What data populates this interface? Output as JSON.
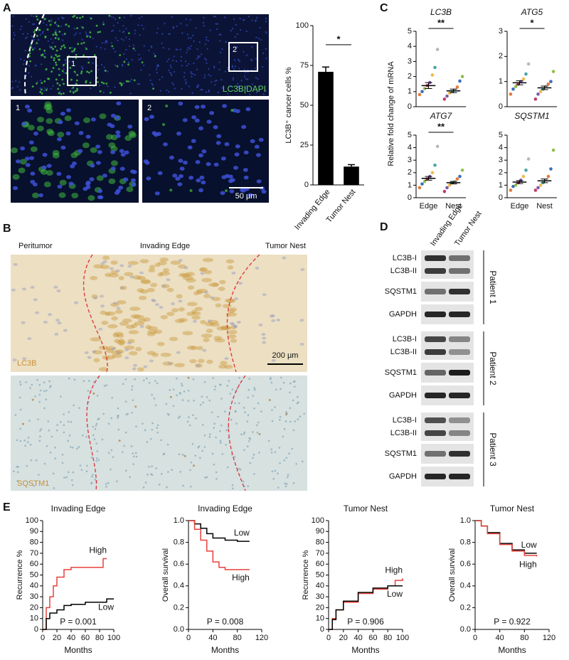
{
  "panels": [
    "A",
    "B",
    "C",
    "D",
    "E"
  ],
  "figure_a": {
    "stain_label": "LC3B|DAPI",
    "inset_labels": [
      "1",
      "2"
    ],
    "scale_bar": "50 µm"
  },
  "figure_b": {
    "region_labels": [
      "Peritumor",
      "Invading Edge",
      "Tumor Nest"
    ],
    "stain_labels": [
      "LC3B",
      "SQSTM1"
    ],
    "scale_bar": "200 µm"
  },
  "figure_c": {
    "ylabel": "Relative fold change of mRNA"
  },
  "figure_d": {
    "lanes": [
      "Invading Edge",
      "Tumor Nest"
    ],
    "patients": [
      {
        "name": "Patient 1",
        "rows": [
          "LC3B-I",
          "LC3B-II",
          "SQSTM1",
          "GAPDH"
        ]
      },
      {
        "name": "Patient 2",
        "rows": [
          "LC3B-I",
          "LC3B-II",
          "SQSTM1",
          "GAPDH"
        ]
      },
      {
        "name": "Patient 3",
        "rows": [
          "LC3B-I",
          "LC3B-II",
          "SQSTM1",
          "GAPDH"
        ]
      }
    ]
  },
  "chart_data": [
    {
      "type": "bar",
      "ylabel": "LC3B⁺ cancer cells %",
      "categories": [
        "Invading Edge",
        "Tumor Nest"
      ],
      "values": [
        71,
        11.5
      ],
      "errors": [
        3,
        1.2
      ],
      "color": "#000000",
      "significance": "*",
      "ylim": [
        0,
        100
      ],
      "yticks": [
        0,
        25,
        50,
        75,
        100
      ]
    },
    {
      "type": "strip",
      "title": "LC3B",
      "categories": [
        null,
        null
      ],
      "significance": "**",
      "values": [
        [
          0.8,
          1.0,
          1.2,
          1.4,
          1.6,
          2.1,
          2.6,
          3.8
        ],
        [
          0.5,
          0.7,
          0.9,
          1.0,
          1.1,
          1.3,
          1.7,
          2.0
        ]
      ],
      "means": [
        1.4,
        1.05
      ],
      "sems": [
        0.2,
        0.12
      ],
      "colors": [
        "#e07b39",
        "#3b6fb6",
        "#8fbf4d",
        "#c23b6a",
        "#7a5aa8",
        "#f0b94a",
        "#4aa3a3",
        "#b8b8b8"
      ],
      "ylim": [
        0,
        5
      ],
      "yticks": [
        0,
        1,
        2,
        3,
        4,
        5
      ]
    },
    {
      "type": "strip",
      "title": "ATG5",
      "categories": [
        null,
        null
      ],
      "significance": "*",
      "values": [
        [
          0.5,
          0.7,
          0.8,
          0.9,
          1.0,
          1.1,
          1.3,
          1.7
        ],
        [
          0.3,
          0.5,
          0.6,
          0.7,
          0.8,
          0.9,
          1.0,
          1.4
        ]
      ],
      "means": [
        0.95,
        0.75
      ],
      "sems": [
        0.08,
        0.07
      ],
      "colors": [
        "#e07b39",
        "#3b6fb6",
        "#8fbf4d",
        "#c23b6a",
        "#7a5aa8",
        "#f0b94a",
        "#4aa3a3",
        "#b8b8b8"
      ],
      "ylim": [
        0,
        3
      ],
      "yticks": [
        0,
        1,
        2,
        3
      ]
    },
    {
      "type": "strip",
      "title": "ATG7",
      "categories": [
        "Edge",
        "Nest"
      ],
      "significance": "**",
      "values": [
        [
          0.8,
          1.1,
          1.3,
          1.5,
          1.7,
          2.0,
          2.6,
          4.1
        ],
        [
          0.5,
          0.8,
          1.0,
          1.2,
          1.3,
          1.5,
          1.7,
          2.2
        ]
      ],
      "means": [
        1.55,
        1.2
      ],
      "sems": [
        0.15,
        0.1
      ],
      "colors": [
        "#e07b39",
        "#3b6fb6",
        "#8fbf4d",
        "#c23b6a",
        "#7a5aa8",
        "#f0b94a",
        "#4aa3a3",
        "#b8b8b8"
      ],
      "ylim": [
        0,
        5
      ],
      "yticks": [
        0,
        1,
        2,
        3,
        4,
        5
      ]
    },
    {
      "type": "strip",
      "title": "SQSTM1",
      "categories": [
        "Edge",
        "Nest"
      ],
      "values": [
        [
          0.6,
          0.9,
          1.0,
          1.2,
          1.4,
          1.7,
          2.2,
          3.1
        ],
        [
          0.6,
          0.8,
          1.0,
          1.2,
          1.4,
          1.7,
          2.3,
          3.8
        ]
      ],
      "means": [
        1.25,
        1.35
      ],
      "sems": [
        0.12,
        0.15
      ],
      "colors": [
        "#e07b39",
        "#3b6fb6",
        "#8fbf4d",
        "#c23b6a",
        "#7a5aa8",
        "#f0b94a",
        "#4aa3a3",
        "#b8b8b8"
      ],
      "ylim": [
        0,
        5
      ],
      "yticks": [
        0,
        1,
        2,
        3,
        4,
        5
      ]
    },
    {
      "type": "line",
      "step": true,
      "title": "Invading Edge",
      "ylabel": "Recurrence %",
      "xlabel": "Months",
      "annotation": "P = 0.001",
      "series": [
        {
          "name": "High",
          "color": "#e8413c",
          "x": [
            0,
            5,
            10,
            15,
            20,
            30,
            40,
            60,
            80,
            85,
            90
          ],
          "values": [
            0,
            20,
            30,
            40,
            48,
            55,
            57,
            57,
            57,
            65,
            65
          ]
        },
        {
          "name": "Low",
          "color": "#000000",
          "x": [
            0,
            5,
            10,
            20,
            30,
            40,
            60,
            80,
            90,
            100
          ],
          "values": [
            0,
            10,
            15,
            18,
            22,
            23,
            25,
            25,
            28,
            28
          ]
        }
      ],
      "xlim": [
        0,
        100
      ],
      "xticks": [
        0,
        20,
        40,
        60,
        80,
        100
      ],
      "ylim": [
        0,
        100
      ],
      "yticks": [
        0,
        10,
        20,
        30,
        40,
        50,
        60,
        70,
        80,
        90,
        100
      ]
    },
    {
      "type": "line",
      "step": true,
      "title": "Invading Edge",
      "ylabel": "Overall survival",
      "xlabel": "Months",
      "annotation": "P = 0.008",
      "series": [
        {
          "name": "Low",
          "color": "#000000",
          "x": [
            0,
            10,
            20,
            30,
            40,
            60,
            80,
            100
          ],
          "values": [
            1.0,
            0.97,
            0.93,
            0.88,
            0.84,
            0.82,
            0.81,
            0.81
          ]
        },
        {
          "name": "High",
          "color": "#e8413c",
          "x": [
            0,
            10,
            20,
            30,
            40,
            50,
            60,
            100
          ],
          "values": [
            1.0,
            0.92,
            0.82,
            0.72,
            0.62,
            0.57,
            0.55,
            0.55
          ]
        }
      ],
      "xlim": [
        0,
        120
      ],
      "xticks": [
        0,
        40,
        80,
        120
      ],
      "ylim": [
        0,
        1
      ],
      "yticks": [
        {
          "value": 0,
          "label": "0.0"
        },
        0.2,
        0.4,
        0.6,
        0.8,
        {
          "value": 1,
          "label": "1.0"
        }
      ]
    },
    {
      "type": "line",
      "step": true,
      "title": "Tumor Nest",
      "ylabel": "Recurrence %",
      "xlabel": "Months",
      "annotation": "P = 0.906",
      "series": [
        {
          "name": "High",
          "color": "#e8413c",
          "x": [
            0,
            5,
            10,
            20,
            40,
            60,
            80,
            90,
            100
          ],
          "values": [
            0,
            10,
            18,
            25,
            33,
            37,
            40,
            45,
            47
          ]
        },
        {
          "name": "Low",
          "color": "#000000",
          "x": [
            0,
            5,
            10,
            20,
            40,
            60,
            80,
            90,
            100
          ],
          "values": [
            0,
            9,
            18,
            26,
            34,
            38,
            40,
            40,
            40
          ]
        }
      ],
      "xlim": [
        0,
        100
      ],
      "xticks": [
        0,
        20,
        40,
        60,
        80,
        100
      ],
      "ylim": [
        0,
        100
      ],
      "yticks": [
        0,
        10,
        20,
        30,
        40,
        50,
        60,
        70,
        80,
        90,
        100
      ]
    },
    {
      "type": "line",
      "step": true,
      "title": "Tumor Nest",
      "ylabel": "Overall survival",
      "xlabel": "Months",
      "annotation": "P = 0.922",
      "series": [
        {
          "name": "Low",
          "color": "#000000",
          "x": [
            0,
            10,
            20,
            40,
            60,
            80,
            100
          ],
          "values": [
            1.0,
            0.95,
            0.89,
            0.79,
            0.73,
            0.7,
            0.7
          ]
        },
        {
          "name": "High",
          "color": "#e8413c",
          "x": [
            0,
            10,
            20,
            40,
            60,
            80,
            100
          ],
          "values": [
            1.0,
            0.95,
            0.88,
            0.78,
            0.72,
            0.68,
            0.67
          ]
        }
      ],
      "xlim": [
        0,
        120
      ],
      "xticks": [
        0,
        40,
        80,
        120
      ],
      "ylim": [
        0,
        1
      ],
      "yticks": [
        {
          "value": 0,
          "label": "0.0"
        },
        0.2,
        0.4,
        0.6,
        0.8,
        {
          "value": 1,
          "label": "1.0"
        }
      ]
    }
  ]
}
